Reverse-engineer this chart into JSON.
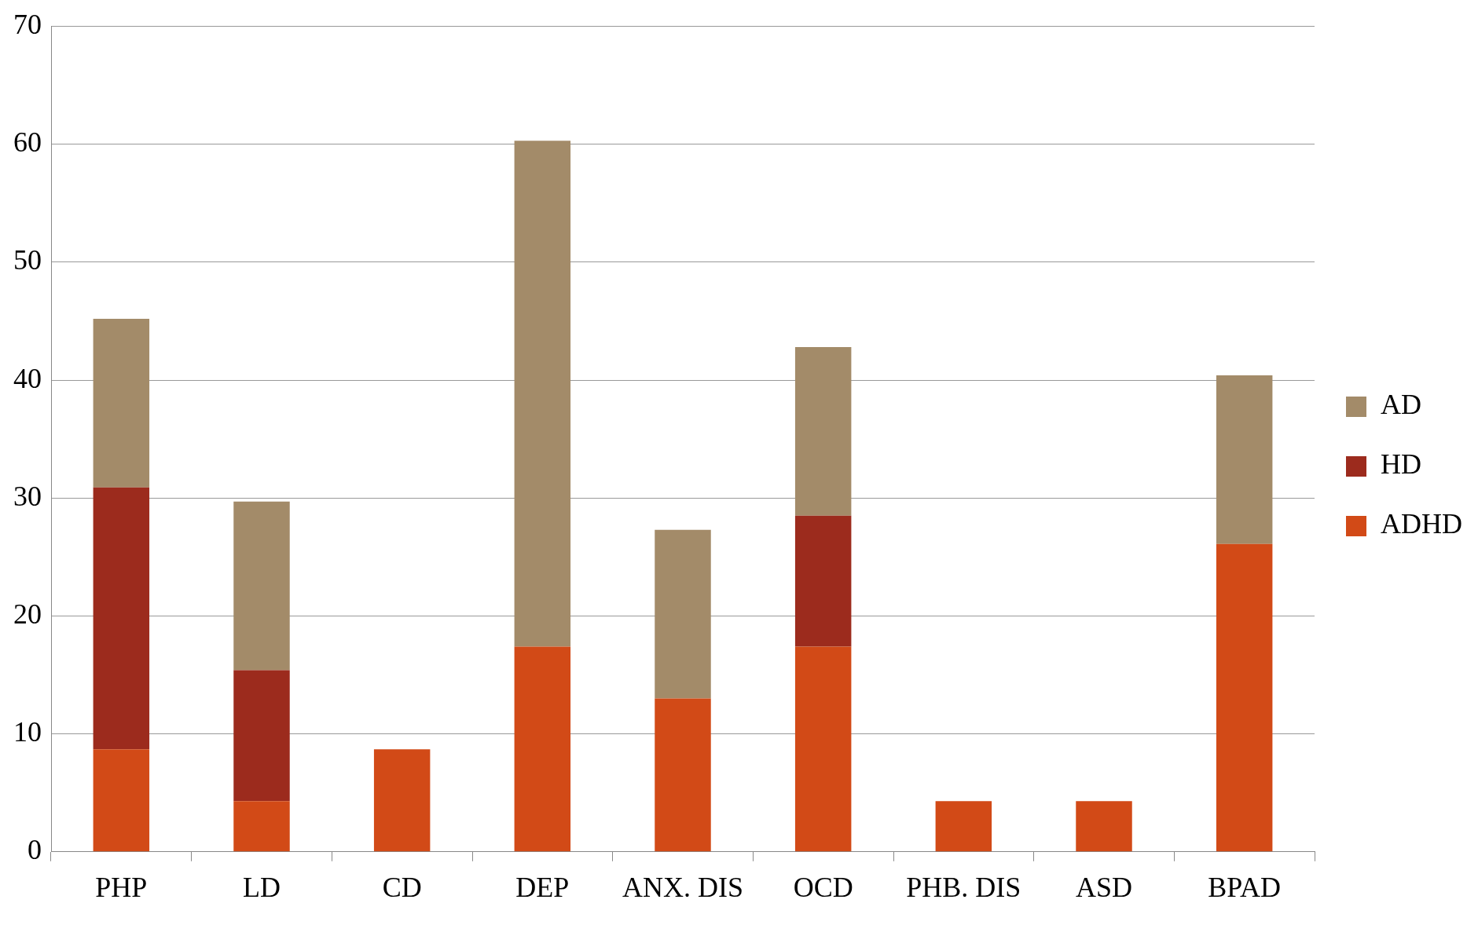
{
  "chart_data": {
    "type": "bar",
    "stacked": true,
    "categories": [
      "PHP",
      "LD",
      "CD",
      "DEP",
      "ANX. DIS",
      "OCD",
      "PHB. DIS",
      "ASD",
      "BPAD"
    ],
    "series": [
      {
        "name": "ADHD",
        "color": "#d24a17",
        "values": [
          8.7,
          4.3,
          8.7,
          17.4,
          13.0,
          17.4,
          4.3,
          4.3,
          26.1
        ]
      },
      {
        "name": "HD",
        "color": "#9c2b1d",
        "values": [
          22.2,
          11.1,
          null,
          null,
          null,
          11.1,
          null,
          null,
          null
        ]
      },
      {
        "name": "AD",
        "color": "#a38b69",
        "values": [
          14.3,
          14.3,
          null,
          42.9,
          14.3,
          14.3,
          null,
          null,
          14.3
        ]
      }
    ],
    "ylim": [
      0,
      70
    ],
    "yticks": [
      0,
      10,
      20,
      30,
      40,
      50,
      60,
      70
    ],
    "grid": "y",
    "legend": "right"
  }
}
